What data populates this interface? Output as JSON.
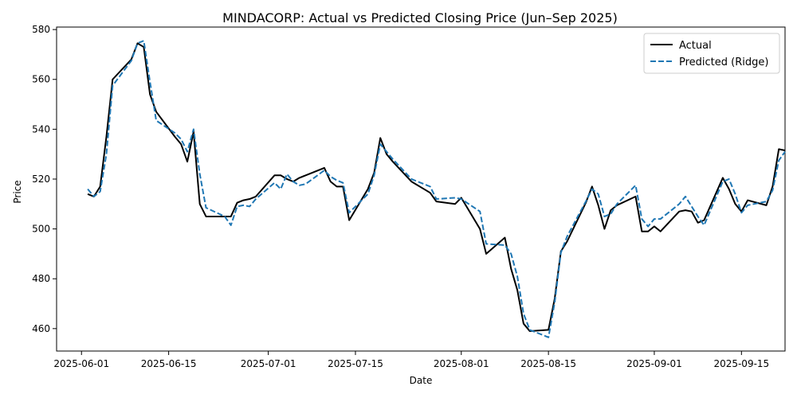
{
  "chart_data": {
    "type": "line",
    "title": "MINDACORP: Actual vs Predicted Closing Price (Jun–Sep 2025)",
    "xlabel": "Date",
    "ylabel": "Price",
    "x_ticks": [
      "2025-06-01",
      "2025-06-15",
      "2025-07-01",
      "2025-07-15",
      "2025-08-01",
      "2025-08-15",
      "2025-09-01",
      "2025-09-15"
    ],
    "y_ticks": [
      460,
      480,
      500,
      520,
      540,
      560,
      580
    ],
    "ylim": [
      451,
      581
    ],
    "xlim": [
      "2025-05-28",
      "2025-09-22"
    ],
    "legend": {
      "position": "top-right"
    },
    "grid": false,
    "series": [
      {
        "name": "Actual",
        "color": "#000000",
        "style": "solid",
        "points": [
          [
            "2025-06-02",
            514
          ],
          [
            "2025-06-03",
            513
          ],
          [
            "2025-06-04",
            517
          ],
          [
            "2025-06-05",
            537
          ],
          [
            "2025-06-06",
            560
          ],
          [
            "2025-06-09",
            568
          ],
          [
            "2025-06-10",
            574.5
          ],
          [
            "2025-06-11",
            573
          ],
          [
            "2025-06-12",
            554
          ],
          [
            "2025-06-13",
            547
          ],
          [
            "2025-06-16",
            537
          ],
          [
            "2025-06-17",
            534
          ],
          [
            "2025-06-18",
            527
          ],
          [
            "2025-06-19",
            539
          ],
          [
            "2025-06-20",
            510
          ],
          [
            "2025-06-21",
            505
          ],
          [
            "2025-06-24",
            505
          ],
          [
            "2025-06-25",
            505
          ],
          [
            "2025-06-26",
            510.5
          ],
          [
            "2025-06-27",
            511.5
          ],
          [
            "2025-06-28",
            512
          ],
          [
            "2025-06-29",
            513
          ],
          [
            "2025-07-02",
            521.5
          ],
          [
            "2025-07-03",
            521.5
          ],
          [
            "2025-07-04",
            520
          ],
          [
            "2025-07-05",
            519
          ],
          [
            "2025-07-06",
            520.5
          ],
          [
            "2025-07-07",
            521.5
          ],
          [
            "2025-07-10",
            524.5
          ],
          [
            "2025-07-11",
            519
          ],
          [
            "2025-07-12",
            517
          ],
          [
            "2025-07-13",
            517
          ],
          [
            "2025-07-14",
            503.5
          ],
          [
            "2025-07-17",
            516
          ],
          [
            "2025-07-18",
            522.5
          ],
          [
            "2025-07-19",
            536.5
          ],
          [
            "2025-07-20",
            530
          ],
          [
            "2025-07-21",
            527
          ],
          [
            "2025-07-24",
            519
          ],
          [
            "2025-07-27",
            514.5
          ],
          [
            "2025-07-28",
            511
          ],
          [
            "2025-07-31",
            510
          ],
          [
            "2025-08-01",
            512.5
          ],
          [
            "2025-08-04",
            500
          ],
          [
            "2025-08-05",
            490
          ],
          [
            "2025-08-08",
            496.5
          ],
          [
            "2025-08-09",
            484
          ],
          [
            "2025-08-10",
            475.5
          ],
          [
            "2025-08-11",
            462
          ],
          [
            "2025-08-12",
            459
          ],
          [
            "2025-08-15",
            459.5
          ],
          [
            "2025-08-16",
            472
          ],
          [
            "2025-08-17",
            491
          ],
          [
            "2025-08-18",
            495
          ],
          [
            "2025-08-21",
            510.5
          ],
          [
            "2025-08-22",
            517
          ],
          [
            "2025-08-23",
            509.5
          ],
          [
            "2025-08-24",
            500
          ],
          [
            "2025-08-25",
            507.5
          ],
          [
            "2025-08-26",
            509.5
          ],
          [
            "2025-08-29",
            513
          ],
          [
            "2025-08-30",
            499
          ],
          [
            "2025-08-31",
            499
          ],
          [
            "2025-09-01",
            501
          ],
          [
            "2025-09-02",
            499
          ],
          [
            "2025-09-05",
            507
          ],
          [
            "2025-09-06",
            507.5
          ],
          [
            "2025-09-07",
            507
          ],
          [
            "2025-09-08",
            502.5
          ],
          [
            "2025-09-09",
            503.5
          ],
          [
            "2025-09-12",
            520.5
          ],
          [
            "2025-09-13",
            516
          ],
          [
            "2025-09-14",
            510
          ],
          [
            "2025-09-15",
            507
          ],
          [
            "2025-09-16",
            511.5
          ],
          [
            "2025-09-19",
            509.5
          ],
          [
            "2025-09-20",
            517
          ],
          [
            "2025-09-21",
            532
          ],
          [
            "2025-09-22",
            531.5
          ]
        ]
      },
      {
        "name": "Predicted (Ridge)",
        "color": "#1f77b4",
        "style": "dashed",
        "points": [
          [
            "2025-06-02",
            516
          ],
          [
            "2025-06-03",
            513
          ],
          [
            "2025-06-04",
            515
          ],
          [
            "2025-06-05",
            530
          ],
          [
            "2025-06-06",
            557.5
          ],
          [
            "2025-06-09",
            567.5
          ],
          [
            "2025-06-10",
            574.5
          ],
          [
            "2025-06-11",
            575.5
          ],
          [
            "2025-06-12",
            559
          ],
          [
            "2025-06-13",
            543.5
          ],
          [
            "2025-06-16",
            538.5
          ],
          [
            "2025-06-17",
            536
          ],
          [
            "2025-06-18",
            531
          ],
          [
            "2025-06-19",
            540
          ],
          [
            "2025-06-20",
            522
          ],
          [
            "2025-06-21",
            508.5
          ],
          [
            "2025-06-24",
            505
          ],
          [
            "2025-06-25",
            501.5
          ],
          [
            "2025-06-26",
            509
          ],
          [
            "2025-06-27",
            509.5
          ],
          [
            "2025-06-28",
            509
          ],
          [
            "2025-06-29",
            512
          ],
          [
            "2025-07-02",
            518.5
          ],
          [
            "2025-07-03",
            516
          ],
          [
            "2025-07-04",
            522
          ],
          [
            "2025-07-05",
            519
          ],
          [
            "2025-07-06",
            517.5
          ],
          [
            "2025-07-07",
            518
          ],
          [
            "2025-07-10",
            523.5
          ],
          [
            "2025-07-11",
            521
          ],
          [
            "2025-07-12",
            519.5
          ],
          [
            "2025-07-13",
            518.5
          ],
          [
            "2025-07-14",
            506.5
          ],
          [
            "2025-07-17",
            514
          ],
          [
            "2025-07-18",
            521.5
          ],
          [
            "2025-07-19",
            534
          ],
          [
            "2025-07-20",
            531
          ],
          [
            "2025-07-21",
            528
          ],
          [
            "2025-07-24",
            520
          ],
          [
            "2025-07-27",
            517
          ],
          [
            "2025-07-28",
            512
          ],
          [
            "2025-07-31",
            512.5
          ],
          [
            "2025-08-01",
            512
          ],
          [
            "2025-08-04",
            507
          ],
          [
            "2025-08-05",
            494
          ],
          [
            "2025-08-08",
            493.5
          ],
          [
            "2025-08-09",
            490
          ],
          [
            "2025-08-10",
            481
          ],
          [
            "2025-08-11",
            466
          ],
          [
            "2025-08-12",
            459.5
          ],
          [
            "2025-08-15",
            456.5
          ],
          [
            "2025-08-16",
            470.5
          ],
          [
            "2025-08-17",
            490.5
          ],
          [
            "2025-08-18",
            497
          ],
          [
            "2025-08-21",
            511
          ],
          [
            "2025-08-22",
            516
          ],
          [
            "2025-08-23",
            514
          ],
          [
            "2025-08-24",
            505
          ],
          [
            "2025-08-25",
            506
          ],
          [
            "2025-08-26",
            510
          ],
          [
            "2025-08-29",
            517.5
          ],
          [
            "2025-08-30",
            504
          ],
          [
            "2025-08-31",
            501
          ],
          [
            "2025-09-01",
            504
          ],
          [
            "2025-09-02",
            504
          ],
          [
            "2025-09-05",
            510
          ],
          [
            "2025-09-06",
            513
          ],
          [
            "2025-09-07",
            509
          ],
          [
            "2025-09-08",
            505
          ],
          [
            "2025-09-09",
            501.5
          ],
          [
            "2025-09-12",
            519
          ],
          [
            "2025-09-13",
            520
          ],
          [
            "2025-09-14",
            514
          ],
          [
            "2025-09-15",
            506.5
          ],
          [
            "2025-09-16",
            509.5
          ],
          [
            "2025-09-19",
            511
          ],
          [
            "2025-09-20",
            515.5
          ],
          [
            "2025-09-21",
            527.5
          ],
          [
            "2025-09-22",
            531
          ]
        ]
      }
    ]
  }
}
